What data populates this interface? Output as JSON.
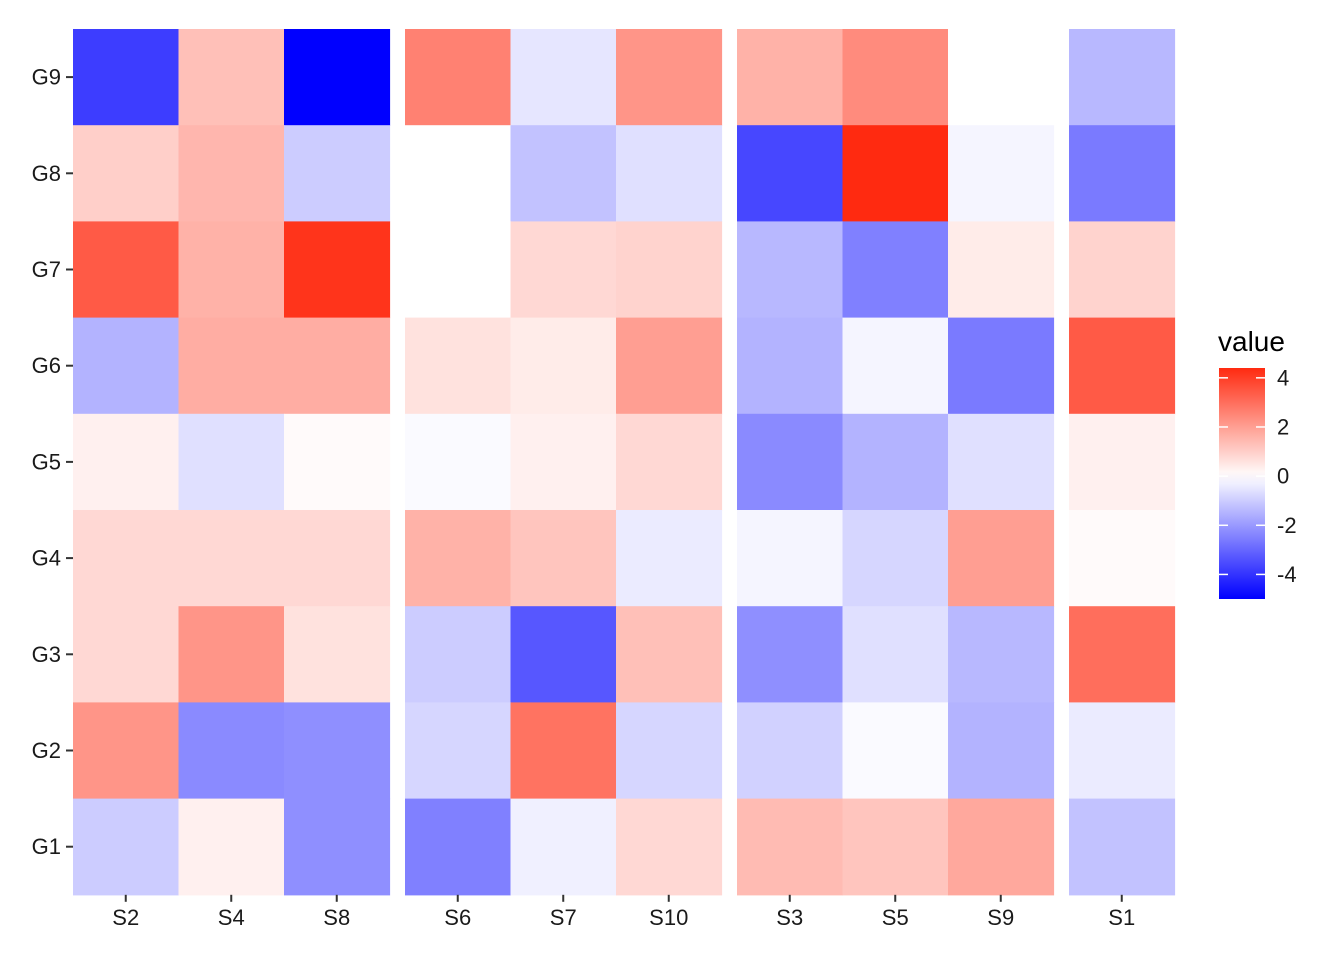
{
  "chart_data": {
    "type": "heatmap",
    "title": "",
    "xlabel": "",
    "ylabel": "",
    "rows": [
      "G9",
      "G8",
      "G7",
      "G6",
      "G5",
      "G4",
      "G3",
      "G2",
      "G1"
    ],
    "panels": [
      {
        "columns": [
          "S2",
          "S4",
          "S8"
        ]
      },
      {
        "columns": [
          "S6",
          "S7",
          "S10"
        ]
      },
      {
        "columns": [
          "S3",
          "S5",
          "S9"
        ]
      },
      {
        "columns": [
          "S1"
        ]
      }
    ],
    "columns": [
      "S2",
      "S4",
      "S8",
      "S6",
      "S7",
      "S10",
      "S3",
      "S5",
      "S9",
      "S1"
    ],
    "values": [
      [
        -3.8,
        1.3,
        -5.0,
        2.6,
        -0.5,
        2.2,
        1.6,
        2.4,
        null,
        -1.4
      ],
      [
        1.0,
        1.5,
        -1.0,
        0.0,
        -1.2,
        -0.6,
        -3.6,
        4.4,
        -0.2,
        -2.6
      ],
      [
        3.4,
        1.6,
        4.2,
        0.0,
        0.8,
        0.9,
        -1.4,
        -2.5,
        0.4,
        0.9
      ],
      [
        -1.5,
        1.7,
        1.7,
        0.6,
        0.4,
        2.0,
        -1.5,
        -0.2,
        -2.6,
        3.4
      ],
      [
        0.3,
        -0.6,
        0.1,
        -0.1,
        0.3,
        0.8,
        -2.3,
        -1.5,
        -0.6,
        0.3
      ],
      [
        0.8,
        0.8,
        0.8,
        1.6,
        1.2,
        -0.4,
        -0.2,
        -0.8,
        2.0,
        0.1
      ],
      [
        0.8,
        2.2,
        0.6,
        -1.0,
        -3.3,
        1.3,
        -2.2,
        -0.6,
        -1.4,
        3.0
      ],
      [
        2.2,
        -2.3,
        -2.2,
        -0.8,
        2.9,
        -0.8,
        -0.9,
        -0.1,
        -1.5,
        -0.4
      ],
      [
        -1.0,
        0.3,
        -2.2,
        -2.5,
        -0.3,
        0.8,
        1.4,
        1.2,
        1.8,
        -1.2
      ]
    ],
    "missing_color": "#ffffff",
    "color_scale": {
      "low": "#0000ff",
      "mid": "#ffffff",
      "high": "#ff2a10",
      "domain": [
        -5,
        0,
        4.4
      ]
    },
    "legend": {
      "title": "value",
      "position": "right",
      "ticks": [
        "4",
        "2",
        "0",
        "-2",
        "-4"
      ],
      "tick_values": [
        4,
        2,
        0,
        -2,
        -4
      ]
    },
    "grid": false
  }
}
